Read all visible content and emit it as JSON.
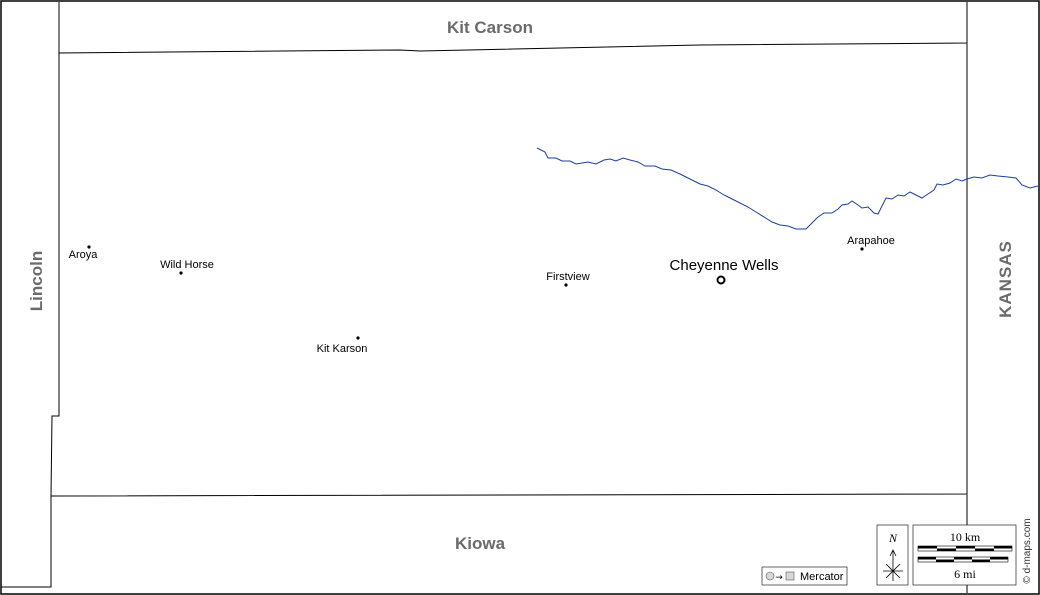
{
  "map": {
    "counties": {
      "north": "Kit Carson",
      "south": "Kiowa",
      "west": "Lincoln"
    },
    "state": "KANSAS",
    "county_seat": "Cheyenne Wells",
    "towns": {
      "aroya": "Aroya",
      "wild_horse": "Wild Horse",
      "firstview": "Firstview",
      "kit_karson": "Kit Karson",
      "arapahoe": "Arapahoe"
    },
    "colors": {
      "river": "#1a3fa0",
      "border": "#000000",
      "neighbor_label": "#6b6b6b"
    }
  },
  "legend": {
    "projection": "Mercator",
    "north": "N",
    "scale_km": "10 km",
    "scale_mi": "6 mi",
    "credit": "© d-maps.com"
  }
}
